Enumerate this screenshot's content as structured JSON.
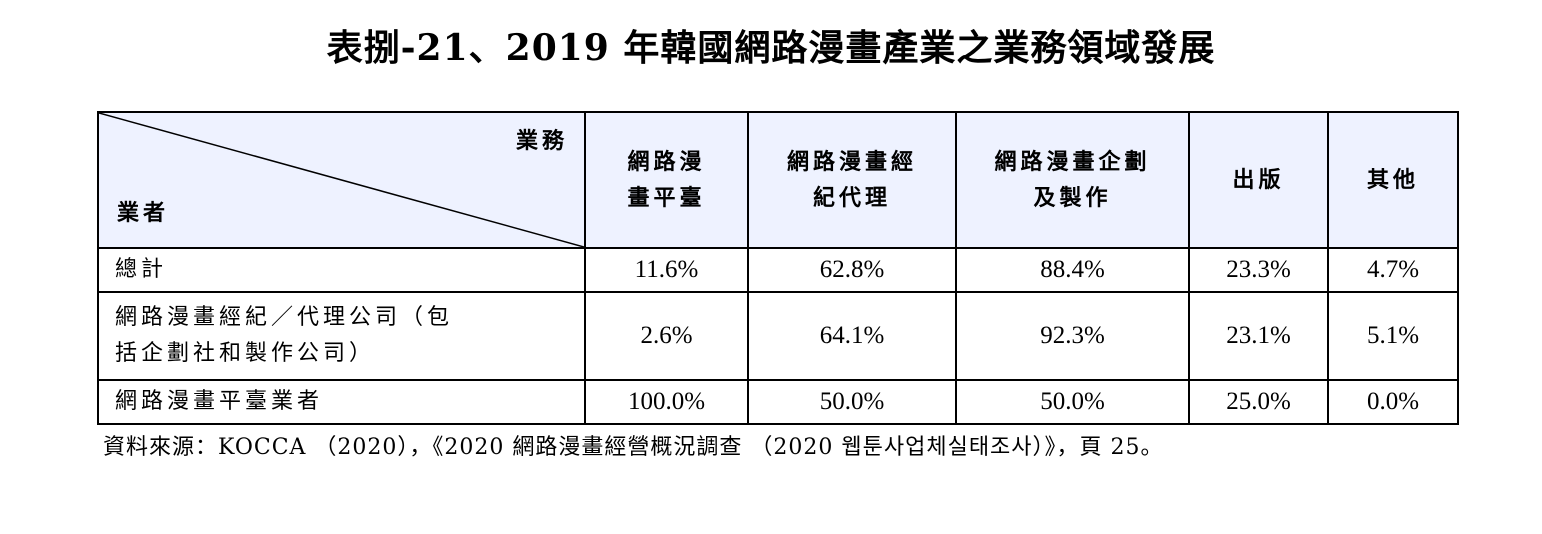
{
  "title": "表捌-21、2019 年韓國網路漫畫產業之業務領域發展",
  "table": {
    "corner_top": "業務",
    "corner_bottom": "業者",
    "columns": [
      {
        "line1": "網路漫",
        "line2": "畫平臺"
      },
      {
        "line1": "網路漫畫經",
        "line2": "紀代理"
      },
      {
        "line1": "網路漫畫企劃",
        "line2": "及製作"
      },
      {
        "line1": "出版",
        "line2": ""
      },
      {
        "line1": "其他",
        "line2": ""
      }
    ],
    "rows": [
      {
        "label_line1": "總計",
        "label_line2": "",
        "values": [
          "11.6%",
          "62.8%",
          "88.4%",
          "23.3%",
          "4.7%"
        ]
      },
      {
        "label_line1": "網路漫畫經紀／代理公司（包",
        "label_line2": "括企劃社和製作公司）",
        "values": [
          "2.6%",
          "64.1%",
          "92.3%",
          "23.1%",
          "5.1%"
        ]
      },
      {
        "label_line1": "網路漫畫平臺業者",
        "label_line2": "",
        "values": [
          "100.0%",
          "50.0%",
          "50.0%",
          "25.0%",
          "0.0%"
        ]
      }
    ]
  },
  "source": "資料來源：KOCCA （2020），《2020 網路漫畫經營概況調查 （2020 웹툰사업체실태조사）》，頁 25。",
  "colors": {
    "header_background": "#eef2ff",
    "border": "#000000"
  }
}
